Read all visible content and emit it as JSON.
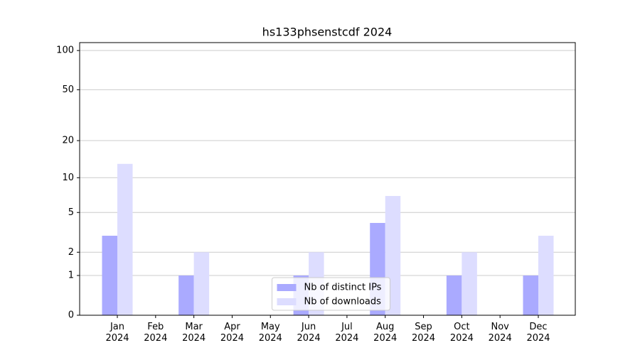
{
  "chart_data": {
    "type": "bar",
    "title": "hs133phsenstcdf 2024",
    "categories": [
      "Jan\n2024",
      "Feb\n2024",
      "Mar\n2024",
      "Apr\n2024",
      "May\n2024",
      "Jun\n2024",
      "Jul\n2024",
      "Aug\n2024",
      "Sep\n2024",
      "Oct\n2024",
      "Nov\n2024",
      "Dec\n2024"
    ],
    "series": [
      {
        "name": "Nb of distinct IPs",
        "color": "#aaaaff",
        "values": [
          3,
          0,
          1,
          0,
          0,
          1,
          0,
          4,
          0,
          1,
          0,
          1
        ]
      },
      {
        "name": "Nb of downloads",
        "color": "#ddddff",
        "values": [
          13,
          0,
          2,
          0,
          0,
          2,
          0,
          7,
          0,
          2,
          0,
          3
        ]
      }
    ],
    "yscale": "log1p",
    "ylim": [
      0,
      115
    ],
    "yticks": [
      0,
      1,
      2,
      5,
      10,
      20,
      50,
      100
    ],
    "grid": true,
    "legend": "lower center"
  }
}
